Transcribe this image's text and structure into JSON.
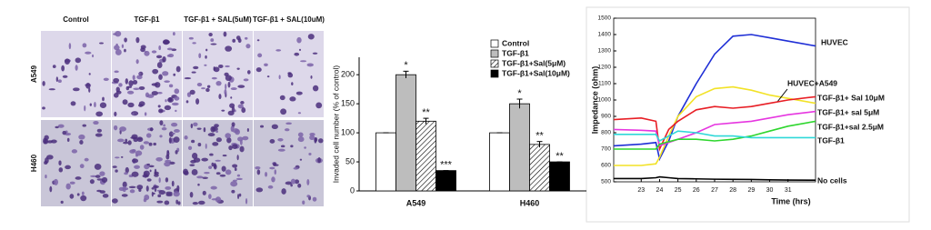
{
  "image_panel": {
    "columns": [
      "Control",
      "TGF-β1",
      "TGF-β1 + SAL(5uM)",
      "TGF-β1 + SAL(10uM)"
    ],
    "rows": [
      "A549",
      "H460"
    ]
  },
  "chart_data": [
    {
      "type": "bar",
      "y_label": "Invaded cell number (% of control)",
      "categories": [
        "A549",
        "H460"
      ],
      "ylim": [
        0,
        230
      ],
      "yticks": [
        0,
        50,
        100,
        150,
        200
      ],
      "series": [
        {
          "name": "Control",
          "color": "#ffffff",
          "values": [
            100,
            100
          ],
          "errors": [
            0,
            0
          ],
          "significance": [
            null,
            null
          ]
        },
        {
          "name": "TGF-β1",
          "color": "#bdbdbd",
          "values": [
            200,
            150
          ],
          "errors": [
            6,
            8
          ],
          "significance": [
            "*",
            "*"
          ]
        },
        {
          "name": "TGF-β1+Sal(5μM)",
          "color": "#ffffff",
          "pattern": "hatch",
          "values": [
            120,
            80
          ],
          "errors": [
            5,
            5
          ],
          "significance": [
            "**",
            "**"
          ]
        },
        {
          "name": "TGF-β1+Sal(10μM)",
          "color": "#000000",
          "values": [
            35,
            50
          ],
          "errors": [
            0,
            0
          ],
          "significance": [
            "***",
            "**"
          ]
        }
      ]
    },
    {
      "type": "line",
      "y_label": "Impedance (ohm)",
      "x_label": "Time (hrs)",
      "xlim": [
        21.5,
        32.5
      ],
      "xticks": [
        23,
        24,
        25,
        26,
        27,
        28,
        29,
        30,
        31
      ],
      "ylim": [
        500,
        1500
      ],
      "yticks": [
        500,
        600,
        700,
        800,
        900,
        1000,
        1100,
        1200,
        1300,
        1400,
        1500
      ],
      "x": [
        21.5,
        23,
        23.8,
        24,
        24.5,
        25,
        26,
        27,
        28,
        29,
        30,
        31,
        32.5
      ],
      "series": [
        {
          "name": "HUVEC",
          "color": "#1f2fd6",
          "values": [
            720,
            730,
            740,
            640,
            750,
            900,
            1100,
            1280,
            1390,
            1400,
            1380,
            1360,
            1330
          ]
        },
        {
          "name": "HUVEC+A549",
          "color": "#f2e227",
          "values": [
            600,
            600,
            610,
            650,
            780,
            900,
            1020,
            1070,
            1080,
            1060,
            1030,
            1010,
            980
          ]
        },
        {
          "name": "TGF-β1+ Sal 10μM",
          "color": "#e81e25",
          "values": [
            880,
            890,
            870,
            700,
            820,
            870,
            940,
            960,
            950,
            960,
            980,
            1000,
            1020
          ]
        },
        {
          "name": "TGF-β1+ sal 5μM",
          "color": "#e636e0",
          "values": [
            820,
            815,
            810,
            720,
            740,
            760,
            800,
            850,
            860,
            870,
            890,
            910,
            930
          ]
        },
        {
          "name": "TGF-β1+sal 2.5μM",
          "color": "#2ed62e",
          "values": [
            700,
            700,
            700,
            730,
            745,
            760,
            760,
            750,
            760,
            780,
            810,
            840,
            870
          ]
        },
        {
          "name": "TGF-β1",
          "color": "#2fd8d8",
          "values": [
            790,
            790,
            790,
            750,
            780,
            810,
            800,
            780,
            780,
            770,
            770,
            770,
            770
          ]
        },
        {
          "name": "No cells",
          "color": "#000000",
          "values": [
            520,
            520,
            525,
            530,
            525,
            520,
            518,
            516,
            515,
            514,
            512,
            511,
            510
          ]
        }
      ]
    }
  ]
}
